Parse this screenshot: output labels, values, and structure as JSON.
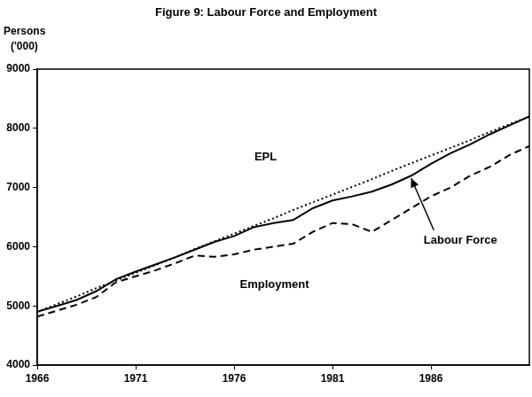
{
  "chart_data": {
    "type": "line",
    "title": "Figure 9: Labour Force and Employment",
    "ylabel": [
      "Persons",
      "('000)"
    ],
    "x": [
      1966,
      1967,
      1968,
      1969,
      1970,
      1971,
      1972,
      1973,
      1974,
      1975,
      1976,
      1977,
      1978,
      1979,
      1980,
      1981,
      1982,
      1983,
      1984,
      1985,
      1986,
      1987,
      1988,
      1989,
      1990,
      1991
    ],
    "series": [
      {
        "name": "EPL",
        "color": "#000000",
        "line_style": "dotted",
        "values": [
          4900,
          5030,
          5160,
          5300,
          5430,
          5560,
          5690,
          5820,
          5960,
          6090,
          6220,
          6350,
          6480,
          6620,
          6750,
          6880,
          7010,
          7140,
          7280,
          7410,
          7540,
          7670,
          7800,
          7940,
          8070,
          8200
        ]
      },
      {
        "name": "Labour Force",
        "color": "#000000",
        "line_style": "solid",
        "values": [
          4900,
          5000,
          5100,
          5250,
          5450,
          5580,
          5700,
          5820,
          5950,
          6080,
          6180,
          6330,
          6400,
          6450,
          6650,
          6780,
          6850,
          6930,
          7050,
          7200,
          7400,
          7580,
          7730,
          7900,
          8050,
          8200
        ]
      },
      {
        "name": "Employment",
        "color": "#000000",
        "line_style": "dashed",
        "values": [
          4820,
          4920,
          5020,
          5150,
          5400,
          5500,
          5600,
          5720,
          5850,
          5830,
          5870,
          5950,
          6000,
          6050,
          6250,
          6400,
          6380,
          6250,
          6450,
          6650,
          6850,
          7000,
          7200,
          7350,
          7550,
          7700
        ]
      }
    ],
    "xlim": [
      1966,
      1991
    ],
    "xticks": [
      1966,
      1971,
      1976,
      1981,
      1986
    ],
    "ylim": [
      4000,
      9000
    ],
    "yticks": [
      4000,
      5000,
      6000,
      7000,
      8000,
      9000
    ],
    "grid": false
  }
}
